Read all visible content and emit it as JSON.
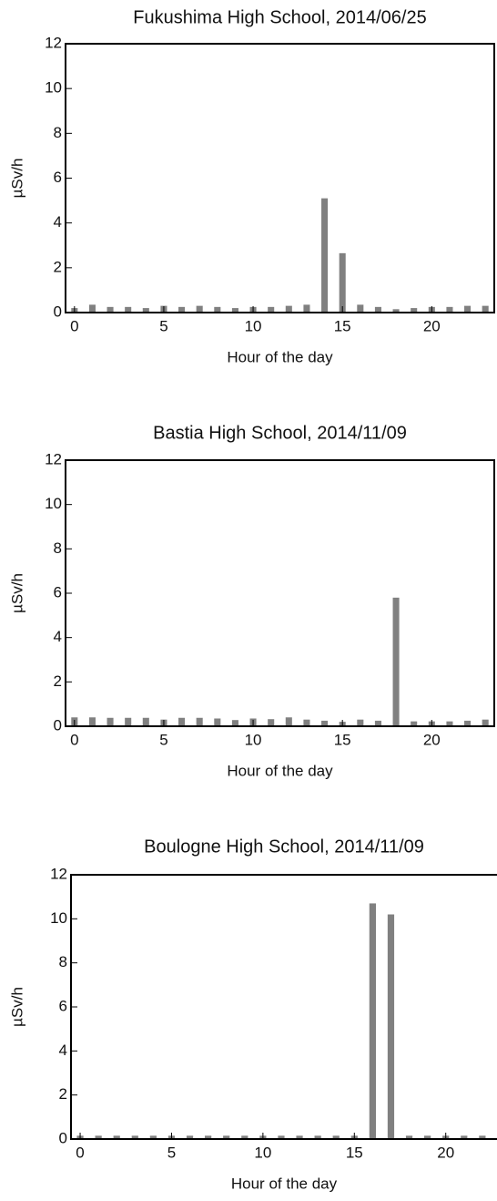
{
  "chart_data": [
    {
      "type": "bar",
      "title": "Fukushima High School, 2014/06/25",
      "x_label": "Hour of the day",
      "y_label": "µSv/h",
      "x": [
        0,
        1,
        2,
        3,
        4,
        5,
        6,
        7,
        8,
        9,
        10,
        11,
        12,
        13,
        14,
        15,
        16,
        17,
        18,
        19,
        20,
        21,
        22,
        23
      ],
      "values": [
        0.2,
        0.35,
        0.25,
        0.25,
        0.2,
        0.3,
        0.25,
        0.3,
        0.25,
        0.2,
        0.25,
        0.25,
        0.3,
        0.35,
        5.1,
        2.65,
        0.35,
        0.25,
        0.15,
        0.2,
        0.25,
        0.25,
        0.3,
        0.3
      ],
      "color": "#808080",
      "xlim": [
        -0.5,
        23.5
      ],
      "xticks": [
        0,
        5,
        10,
        15,
        20
      ],
      "ylim": [
        0,
        12
      ],
      "yticks": [
        0,
        2,
        4,
        6,
        8,
        10,
        12
      ]
    },
    {
      "type": "bar",
      "title": "Bastia High School, 2014/11/09",
      "x_label": "Hour of the day",
      "y_label": "µSv/h",
      "x": [
        0,
        1,
        2,
        3,
        4,
        5,
        6,
        7,
        8,
        9,
        10,
        11,
        12,
        13,
        14,
        15,
        16,
        17,
        18,
        19,
        20,
        21,
        22,
        23
      ],
      "values": [
        0.4,
        0.4,
        0.38,
        0.38,
        0.38,
        0.3,
        0.38,
        0.38,
        0.35,
        0.28,
        0.35,
        0.32,
        0.4,
        0.3,
        0.25,
        0.2,
        0.3,
        0.25,
        5.8,
        0.22,
        0.22,
        0.22,
        0.25,
        0.3
      ],
      "color": "#808080",
      "xlim": [
        -0.5,
        23.5
      ],
      "xticks": [
        0,
        5,
        10,
        15,
        20
      ],
      "ylim": [
        0,
        12
      ],
      "yticks": [
        0,
        2,
        4,
        6,
        8,
        10,
        12
      ]
    },
    {
      "type": "bar",
      "title": "Boulogne High School, 2014/11/09",
      "x_label": "Hour of the day",
      "y_label": "µSv/h",
      "x": [
        0,
        1,
        2,
        3,
        4,
        5,
        6,
        7,
        8,
        9,
        10,
        11,
        12,
        13,
        14,
        15,
        16,
        17,
        18,
        19,
        20,
        21,
        22,
        23
      ],
      "values": [
        0.15,
        0.15,
        0.15,
        0.15,
        0.15,
        0.15,
        0.15,
        0.15,
        0.15,
        0.15,
        0.15,
        0.15,
        0.15,
        0.15,
        0.15,
        0.15,
        10.7,
        10.2,
        0.15,
        0.15,
        0.15,
        0.15,
        0.15,
        0.15
      ],
      "color": "#808080",
      "xlim": [
        -0.5,
        23.5
      ],
      "xticks": [
        0,
        5,
        10,
        15,
        20
      ],
      "ylim": [
        0,
        12
      ],
      "yticks": [
        0,
        2,
        4,
        6,
        8,
        10,
        12
      ]
    }
  ]
}
